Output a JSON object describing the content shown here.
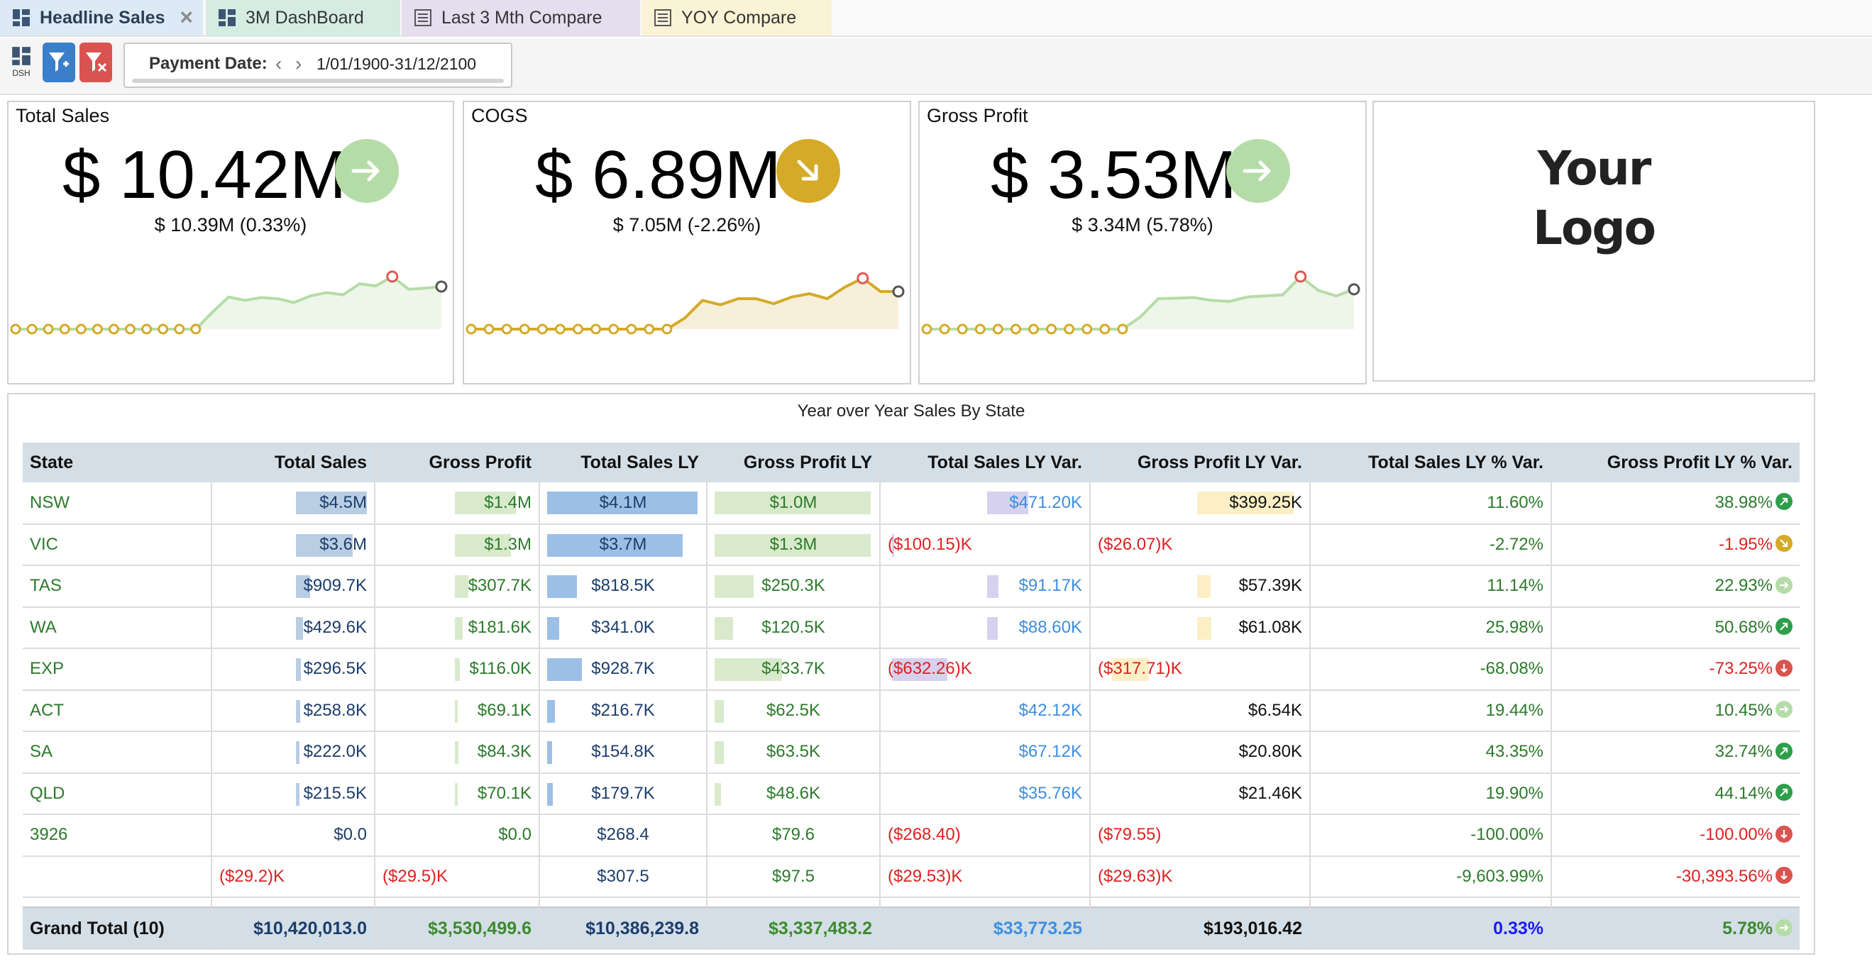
{
  "tabs": [
    {
      "label": "Headline Sales",
      "icon": "dashboard-icon",
      "active": true
    },
    {
      "label": "3M DashBoard",
      "icon": "dashboard-icon"
    },
    {
      "label": "Last 3 Mth Compare",
      "icon": "report-icon"
    },
    {
      "label": "YOY Compare",
      "icon": "report-icon"
    }
  ],
  "toolbar": {
    "dsh_label": "DSH",
    "filter_label": "Payment Date:",
    "filter_value": "1/01/1900-31/12/2100",
    "prev_glyph": "‹",
    "next_glyph": "›"
  },
  "kpis": [
    {
      "title": "Total Sales",
      "value": "$ 10.42M",
      "previous": "$ 10.39M (0.33%)",
      "trend": "up",
      "color": "#b5dca7",
      "spark": [
        0,
        0,
        0,
        0,
        0,
        0,
        0,
        0,
        0,
        0,
        0,
        0,
        0.3,
        0.58,
        0.52,
        0.57,
        0.55,
        0.48,
        0.6,
        0.66,
        0.62,
        0.82,
        0.78,
        0.95,
        0.72,
        0.74,
        0.77
      ],
      "spark_line": "#b5dca7",
      "spark_fill": "#eef6ea"
    },
    {
      "title": "COGS",
      "value": "$ 6.89M",
      "previous": "$ 7.05M (-2.26%)",
      "trend": "down",
      "color": "#d4aa28",
      "spark": [
        0,
        0,
        0,
        0,
        0,
        0,
        0,
        0,
        0,
        0,
        0,
        0,
        0.2,
        0.52,
        0.44,
        0.55,
        0.55,
        0.46,
        0.58,
        0.64,
        0.55,
        0.76,
        0.92,
        0.68,
        0.68
      ],
      "spark_line": "#d4aa28",
      "spark_fill": "#f7efd9"
    },
    {
      "title": "Gross Profit",
      "value": "$ 3.53M",
      "previous": "$ 3.34M (5.78%)",
      "trend": "up",
      "color": "#b5dca7",
      "spark": [
        0,
        0,
        0,
        0,
        0,
        0,
        0,
        0,
        0,
        0,
        0,
        0,
        0.22,
        0.55,
        0.56,
        0.57,
        0.52,
        0.5,
        0.58,
        0.6,
        0.62,
        0.95,
        0.7,
        0.6,
        0.72
      ],
      "spark_line": "#b5dca7",
      "spark_fill": "#eef6ea"
    }
  ],
  "logo": {
    "line1": "Your",
    "line2": "Logo"
  },
  "table": {
    "title": "Year over Year Sales By State",
    "sort_glyph": "↓",
    "headers": [
      "State",
      "Total Sales",
      "Gross Profit",
      "Total Sales LY",
      "Gross Profit LY",
      "Total Sales LY Var.",
      "Gross Profit LY Var.",
      "Total Sales LY % Var.",
      "Gross Profit LY % Var."
    ],
    "bar_colors": {
      "total_sales": "#b9cde3",
      "gross_profit": "#d8eacb",
      "total_sales_ly": "#9cbfe6",
      "gross_profit_ly": "#d8eacb",
      "ts_var": "#d6d1ee",
      "gp_var": "#fcefc6"
    },
    "rows": [
      {
        "state": "NSW",
        "ts": "$4.5M",
        "gp": "$1.4M",
        "tsly": "$4.1M",
        "gply": "$1.0M",
        "tsvar": "$471.20K",
        "gpvar": "$399.25K",
        "tspct": "11.60%",
        "gppct": "38.98%",
        "trend": "up",
        "ts_frac": 1.0,
        "gp_frac": 1.0,
        "tsly_frac": 1.0,
        "gply_frac": 1.0,
        "tsvar_frac": 0.74,
        "gpvar_frac": 1.0
      },
      {
        "state": "VIC",
        "ts": "$3.6M",
        "gp": "$1.3M",
        "tsly": "$3.7M",
        "gply": "$1.3M",
        "tsvar": "($100.15)K",
        "gpvar": "($26.07)K",
        "tspct": "-2.72%",
        "gppct": "-1.95%",
        "trend": "mid",
        "ts_frac": 0.8,
        "gp_frac": 0.92,
        "tsly_frac": 0.9,
        "gply_frac": 1.0,
        "tsvar_frac": 0.02,
        "gpvar_frac": 0
      },
      {
        "state": "TAS",
        "ts": "$909.7K",
        "gp": "$307.7K",
        "tsly": "$818.5K",
        "gply": "$250.3K",
        "tsvar": "$91.17K",
        "gpvar": "$57.39K",
        "tspct": "11.14%",
        "gppct": "22.93%",
        "trend": "flat",
        "ts_frac": 0.2,
        "gp_frac": 0.22,
        "tsly_frac": 0.2,
        "gply_frac": 0.25,
        "tsvar_frac": 0.2,
        "gpvar_frac": 0.14
      },
      {
        "state": "WA",
        "ts": "$429.6K",
        "gp": "$181.6K",
        "tsly": "$341.0K",
        "gply": "$120.5K",
        "tsvar": "$88.60K",
        "gpvar": "$61.08K",
        "tspct": "25.98%",
        "gppct": "50.68%",
        "trend": "up",
        "ts_frac": 0.1,
        "gp_frac": 0.13,
        "tsly_frac": 0.08,
        "gply_frac": 0.12,
        "tsvar_frac": 0.19,
        "gpvar_frac": 0.15
      },
      {
        "state": "EXP",
        "ts": "$296.5K",
        "gp": "$116.0K",
        "tsly": "$928.7K",
        "gply": "$433.7K",
        "tsvar": "($632.26)K",
        "gpvar": "($317.71)K",
        "tspct": "-68.08%",
        "gppct": "-73.25%",
        "trend": "dn",
        "ts_frac": 0.07,
        "gp_frac": 0.08,
        "tsly_frac": 0.23,
        "gply_frac": 0.43,
        "tsvar_frac": 0.6,
        "gpvar_frac": 0.45
      },
      {
        "state": "ACT",
        "ts": "$258.8K",
        "gp": "$69.1K",
        "tsly": "$216.7K",
        "gply": "$62.5K",
        "tsvar": "$42.12K",
        "gpvar": "$6.54K",
        "tspct": "19.44%",
        "gppct": "10.45%",
        "trend": "flat",
        "ts_frac": 0.06,
        "gp_frac": 0.05,
        "tsly_frac": 0.05,
        "gply_frac": 0.06,
        "tsvar_frac": 0,
        "gpvar_frac": 0
      },
      {
        "state": "SA",
        "ts": "$222.0K",
        "gp": "$84.3K",
        "tsly": "$154.8K",
        "gply": "$63.5K",
        "tsvar": "$67.12K",
        "gpvar": "$20.80K",
        "tspct": "43.35%",
        "gppct": "32.74%",
        "trend": "up",
        "ts_frac": 0.05,
        "gp_frac": 0.06,
        "tsly_frac": 0.035,
        "gply_frac": 0.06,
        "tsvar_frac": 0,
        "gpvar_frac": 0
      },
      {
        "state": "QLD",
        "ts": "$215.5K",
        "gp": "$70.1K",
        "tsly": "$179.7K",
        "gply": "$48.6K",
        "tsvar": "$35.76K",
        "gpvar": "$21.46K",
        "tspct": "19.90%",
        "gppct": "44.14%",
        "trend": "up",
        "ts_frac": 0.05,
        "gp_frac": 0.05,
        "tsly_frac": 0.04,
        "gply_frac": 0.04,
        "tsvar_frac": 0,
        "gpvar_frac": 0
      },
      {
        "state": "3926",
        "ts": "$0.0",
        "gp": "$0.0",
        "tsly": "$268.4",
        "gply": "$79.6",
        "tsvar": "($268.40)",
        "gpvar": "($79.55)",
        "tspct": "-100.00%",
        "gppct": "-100.00%",
        "trend": "dn",
        "ts_frac": 0,
        "gp_frac": 0,
        "tsly_frac": 0,
        "gply_frac": 0,
        "tsvar_frac": 0,
        "gpvar_frac": 0
      },
      {
        "state": "",
        "ts": "($29.2)K",
        "gp": "($29.5)K",
        "tsly": "$307.5",
        "gply": "$97.5",
        "tsvar": "($29.53)K",
        "gpvar": "($29.63)K",
        "tspct": "-9,603.99%",
        "gppct": "-30,393.56%",
        "trend": "dn",
        "ts_frac": 0,
        "gp_frac": 0,
        "tsly_frac": 0,
        "gply_frac": 0,
        "tsvar_frac": 0,
        "gpvar_frac": 0
      }
    ],
    "total": {
      "label": "Grand Total (10)",
      "ts": "$10,420,013.0",
      "gp": "$3,530,499.6",
      "tsly": "$10,386,239.8",
      "gply": "$3,337,483.2",
      "tsvar": "$33,773.25",
      "gpvar": "$193,016.42",
      "tspct": "0.33%",
      "gppct": "5.78%",
      "trend": "flat"
    }
  }
}
